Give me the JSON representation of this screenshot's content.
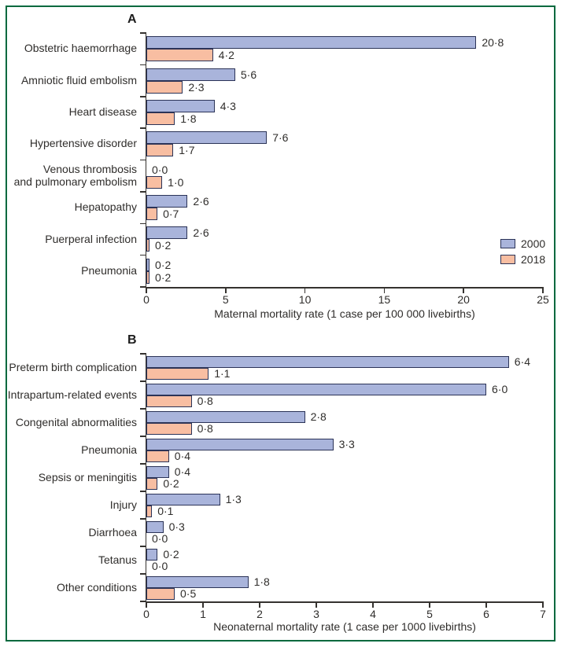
{
  "figure": {
    "frame_color": "#00693E",
    "decimal_separator": "·",
    "background": "#FFFFFF"
  },
  "colors": {
    "bar_2000_fill": "#A9B4DB",
    "bar_2018_fill": "#F8BEA2",
    "bar_border": "#2B3357",
    "axis": "#35322F",
    "text": "#2F2D2B"
  },
  "legend": {
    "position": "lower right of panel A",
    "entries": [
      {
        "series": "2000",
        "label": "2000",
        "color": "#A9B4DB"
      },
      {
        "series": "2018",
        "label": "2018",
        "color": "#F8BEA2"
      }
    ]
  },
  "chart_data": [
    {
      "type": "bar",
      "panel": "A",
      "orientation": "horizontal",
      "grid": false,
      "categories": [
        "Obstetric haemorrhage",
        "Amniotic fluid embolism",
        "Heart disease",
        "Hypertensive disorder",
        "Venous thrombosis\nand pulmonary embolism",
        "Hepatopathy",
        "Puerperal infection",
        "Pneumonia"
      ],
      "series": [
        {
          "name": "2000",
          "values": [
            20.8,
            5.6,
            4.3,
            7.6,
            0.0,
            2.6,
            2.6,
            0.2
          ]
        },
        {
          "name": "2018",
          "values": [
            4.2,
            2.3,
            1.8,
            1.7,
            1.0,
            0.7,
            0.2,
            0.2
          ]
        }
      ],
      "xlabel": "Maternal mortality rate (1 case per 100 000 livebirths)",
      "xlim": [
        0,
        25
      ],
      "xticks": [
        0,
        5,
        10,
        15,
        20,
        25
      ]
    },
    {
      "type": "bar",
      "panel": "B",
      "orientation": "horizontal",
      "grid": false,
      "categories": [
        "Preterm birth complication",
        "Intrapartum-related events",
        "Congenital abnormalities",
        "Pneumonia",
        "Sepsis or meningitis",
        "Injury",
        "Diarrhoea",
        "Tetanus",
        "Other conditions"
      ],
      "series": [
        {
          "name": "2000",
          "values": [
            6.4,
            6.0,
            2.8,
            3.3,
            0.4,
            1.3,
            0.3,
            0.2,
            1.8
          ]
        },
        {
          "name": "2018",
          "values": [
            1.1,
            0.8,
            0.8,
            0.4,
            0.2,
            0.1,
            0.0,
            0.0,
            0.5
          ]
        }
      ],
      "xlabel": "Neonaternal mortality rate (1 case per 1000 livebirths)",
      "xlim": [
        0,
        7
      ],
      "xticks": [
        0,
        1,
        2,
        3,
        4,
        5,
        6,
        7
      ]
    }
  ]
}
